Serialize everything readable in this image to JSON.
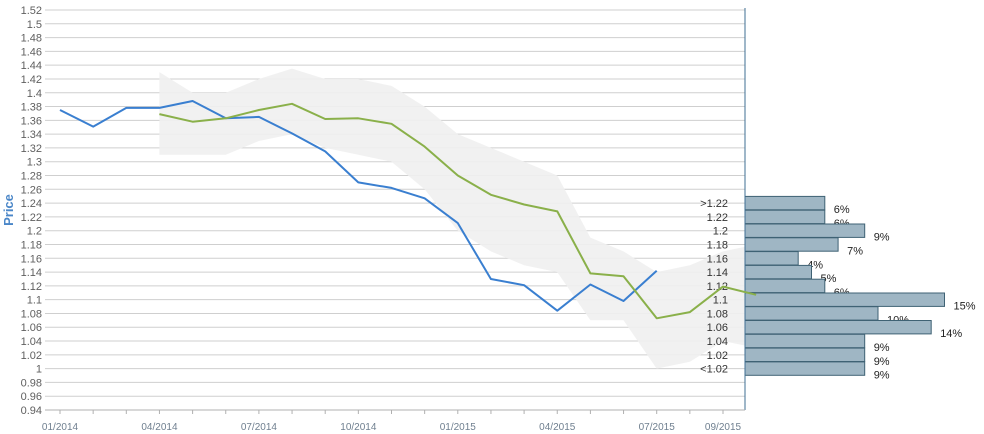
{
  "chart_data": {
    "type": "line",
    "ylabel": "Price",
    "ylim": [
      0.94,
      1.52
    ],
    "y_ticks": [
      "0.94",
      "0.96",
      "0.98",
      "1",
      "1.02",
      "1.04",
      "1.06",
      "1.08",
      "1.1",
      "1.12",
      "1.14",
      "1.16",
      "1.18",
      "1.2",
      "1.22",
      "1.24",
      "1.26",
      "1.28",
      "1.3",
      "1.32",
      "1.34",
      "1.36",
      "1.38",
      "1.4",
      "1.42",
      "1.44",
      "1.46",
      "1.48",
      "1.5",
      "1.52"
    ],
    "x_ticks": [
      "01/2014",
      "04/2014",
      "07/2014",
      "10/2014",
      "01/2015",
      "04/2015",
      "07/2015",
      "09/2015"
    ],
    "grid": true,
    "series": [
      {
        "color": "#3a7fd0",
        "points": [
          {
            "x": "2014-01",
            "y": 1.375
          },
          {
            "x": "2014-02",
            "y": 1.351
          },
          {
            "x": "2014-03",
            "y": 1.378
          },
          {
            "x": "2014-04",
            "y": 1.378
          },
          {
            "x": "2014-05",
            "y": 1.388
          },
          {
            "x": "2014-06",
            "y": 1.363
          },
          {
            "x": "2014-07",
            "y": 1.365
          },
          {
            "x": "2014-08",
            "y": 1.341
          },
          {
            "x": "2014-09",
            "y": 1.315
          },
          {
            "x": "2014-10",
            "y": 1.27
          },
          {
            "x": "2014-11",
            "y": 1.262
          },
          {
            "x": "2014-12",
            "y": 1.247
          },
          {
            "x": "2015-01",
            "y": 1.211
          },
          {
            "x": "2015-02",
            "y": 1.13
          },
          {
            "x": "2015-03",
            "y": 1.121
          },
          {
            "x": "2015-04",
            "y": 1.084
          },
          {
            "x": "2015-05",
            "y": 1.122
          },
          {
            "x": "2015-06",
            "y": 1.098
          },
          {
            "x": "2015-07",
            "y": 1.142
          }
        ]
      },
      {
        "color": "#8ab04a",
        "points": [
          {
            "x": "2014-04",
            "y": 1.369
          },
          {
            "x": "2014-05",
            "y": 1.358
          },
          {
            "x": "2014-06",
            "y": 1.363
          },
          {
            "x": "2014-07",
            "y": 1.375
          },
          {
            "x": "2014-08",
            "y": 1.384
          },
          {
            "x": "2014-09",
            "y": 1.362
          },
          {
            "x": "2014-10",
            "y": 1.363
          },
          {
            "x": "2014-11",
            "y": 1.355
          },
          {
            "x": "2014-12",
            "y": 1.322
          },
          {
            "x": "2015-01",
            "y": 1.28
          },
          {
            "x": "2015-02",
            "y": 1.252
          },
          {
            "x": "2015-03",
            "y": 1.238
          },
          {
            "x": "2015-04",
            "y": 1.228
          },
          {
            "x": "2015-05",
            "y": 1.138
          },
          {
            "x": "2015-06",
            "y": 1.134
          },
          {
            "x": "2015-07",
            "y": 1.073
          },
          {
            "x": "2015-08",
            "y": 1.082
          },
          {
            "x": "2015-09",
            "y": 1.119
          },
          {
            "x": "2015-10",
            "y": 1.107
          }
        ]
      }
    ],
    "band": {
      "color": "#f0f0f0",
      "points": [
        {
          "x": "2014-04",
          "low": 1.31,
          "high": 1.43
        },
        {
          "x": "2014-05",
          "low": 1.31,
          "high": 1.4
        },
        {
          "x": "2014-06",
          "low": 1.31,
          "high": 1.4
        },
        {
          "x": "2014-07",
          "low": 1.33,
          "high": 1.42
        },
        {
          "x": "2014-08",
          "low": 1.34,
          "high": 1.435
        },
        {
          "x": "2014-09",
          "low": 1.32,
          "high": 1.42
        },
        {
          "x": "2014-10",
          "low": 1.31,
          "high": 1.42
        },
        {
          "x": "2014-11",
          "low": 1.3,
          "high": 1.41
        },
        {
          "x": "2014-12",
          "low": 1.26,
          "high": 1.38
        },
        {
          "x": "2015-01",
          "low": 1.2,
          "high": 1.34
        },
        {
          "x": "2015-02",
          "low": 1.17,
          "high": 1.32
        },
        {
          "x": "2015-03",
          "low": 1.15,
          "high": 1.3
        },
        {
          "x": "2015-04",
          "low": 1.14,
          "high": 1.28
        },
        {
          "x": "2015-05",
          "low": 1.07,
          "high": 1.19
        },
        {
          "x": "2015-06",
          "low": 1.07,
          "high": 1.17
        },
        {
          "x": "2015-07",
          "low": 1.0,
          "high": 1.14
        },
        {
          "x": "2015-08",
          "low": 1.01,
          "high": 1.15
        },
        {
          "x": "2015-09",
          "low": 1.04,
          "high": 1.17
        },
        {
          "x": "2015-10",
          "low": 1.03,
          "high": 1.18
        }
      ]
    },
    "histogram": {
      "color": "#9fb6c4",
      "border": "#3f6274",
      "bins": [
        {
          "label": ">1.22",
          "y": 1.24,
          "pct": "6%",
          "value": 6
        },
        {
          "label": "1.22",
          "y": 1.22,
          "pct": "6%",
          "value": 6
        },
        {
          "label": "1.2",
          "y": 1.2,
          "pct": "9%",
          "value": 9
        },
        {
          "label": "1.18",
          "y": 1.18,
          "pct": "7%",
          "value": 7
        },
        {
          "label": "1.16",
          "y": 1.16,
          "pct": "4%",
          "value": 4
        },
        {
          "label": "1.14",
          "y": 1.14,
          "pct": "5%",
          "value": 5
        },
        {
          "label": "1.12",
          "y": 1.12,
          "pct": "6%",
          "value": 6
        },
        {
          "label": "1.1",
          "y": 1.1,
          "pct": "15%",
          "value": 15
        },
        {
          "label": "1.08",
          "y": 1.08,
          "pct": "10%",
          "value": 10
        },
        {
          "label": "1.06",
          "y": 1.06,
          "pct": "14%",
          "value": 14
        },
        {
          "label": "1.04",
          "y": 1.04,
          "pct": "9%",
          "value": 9
        },
        {
          "label": "1.02",
          "y": 1.02,
          "pct": "9%",
          "value": 9
        },
        {
          "label": "<1.02",
          "y": 1.0,
          "pct": "9%",
          "value": 9
        }
      ]
    }
  }
}
